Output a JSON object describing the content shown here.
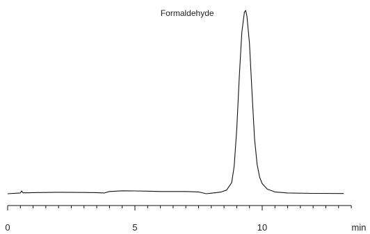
{
  "chart_data": {
    "type": "line",
    "title": "",
    "xlabel": "",
    "ylabel": "",
    "x_unit": "min",
    "xlim": [
      0,
      13.5
    ],
    "x_major_ticks": [
      0,
      5,
      10
    ],
    "x_minor_tick_step": 0.5,
    "tick_labels": [
      "0",
      "5",
      "10"
    ],
    "peak_annotation": {
      "label": "Formaldehyde",
      "x": 9.35
    },
    "series": [
      {
        "x": [
          0.0,
          0.5,
          0.55,
          0.6,
          0.7,
          1.0,
          2.0,
          3.0,
          3.5,
          3.8,
          4.0,
          4.5,
          5.0,
          5.5,
          6.0,
          7.0,
          7.5,
          7.8,
          8.0,
          8.2,
          8.4,
          8.6,
          8.8,
          8.9,
          9.0,
          9.1,
          9.2,
          9.3,
          9.35,
          9.4,
          9.5,
          9.6,
          9.7,
          9.8,
          9.9,
          10.0,
          10.2,
          10.5,
          11.0,
          12.0,
          13.2
        ],
        "y": [
          0.0,
          0.004,
          0.015,
          0.005,
          0.005,
          0.006,
          0.008,
          0.007,
          0.006,
          0.004,
          0.012,
          0.016,
          0.015,
          0.014,
          0.012,
          0.012,
          0.01,
          0.0,
          0.003,
          0.006,
          0.01,
          0.02,
          0.06,
          0.15,
          0.35,
          0.64,
          0.88,
          0.99,
          1.0,
          0.97,
          0.82,
          0.55,
          0.3,
          0.16,
          0.09,
          0.055,
          0.025,
          0.01,
          0.004,
          0.002,
          0.001
        ]
      }
    ],
    "grid": false,
    "legend": "none"
  }
}
